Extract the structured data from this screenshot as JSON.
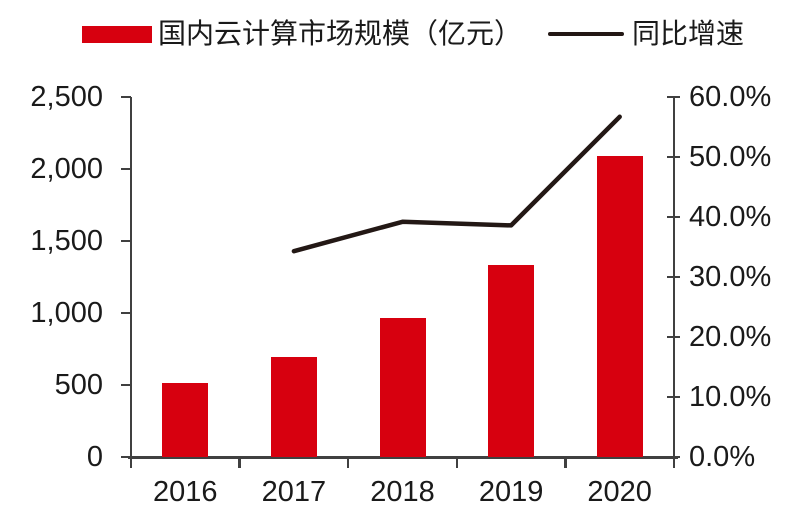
{
  "page": {
    "background": "#ffffff",
    "text_color": "#1a1a1a",
    "axis_color": "#404040"
  },
  "legend": {
    "items": [
      {
        "label": "国内云计算市场规模（亿元）",
        "marker": "bar-swatch",
        "color": "#d7000f"
      },
      {
        "label": "同比增速",
        "marker": "line-swatch",
        "color": "#231815"
      }
    ]
  },
  "chart_data": {
    "type": "bar",
    "combo": "bar+line",
    "title": "",
    "categories": [
      "2016",
      "2017",
      "2018",
      "2019",
      "2020"
    ],
    "series": [
      {
        "name": "国内云计算市场规模（亿元）",
        "type": "bar",
        "axis": "left",
        "color": "#d7000f",
        "values": [
          515,
          692,
          963,
          1334,
          2091
        ]
      },
      {
        "name": "同比增速",
        "type": "line",
        "axis": "right",
        "color": "#231815",
        "unit": "%",
        "values": [
          null,
          34.3,
          39.2,
          38.6,
          56.7
        ]
      }
    ],
    "left_axis": {
      "min": 0,
      "max": 2500,
      "step": 500,
      "tick_labels": [
        "0",
        "500",
        "1,000",
        "1,500",
        "2,000",
        "2,500"
      ]
    },
    "right_axis": {
      "min": 0,
      "max": 60,
      "step": 10,
      "tick_labels": [
        "0.0%",
        "10.0%",
        "20.0%",
        "30.0%",
        "40.0%",
        "50.0%",
        "60.0%"
      ]
    },
    "grid": false,
    "legend_position": "top"
  }
}
